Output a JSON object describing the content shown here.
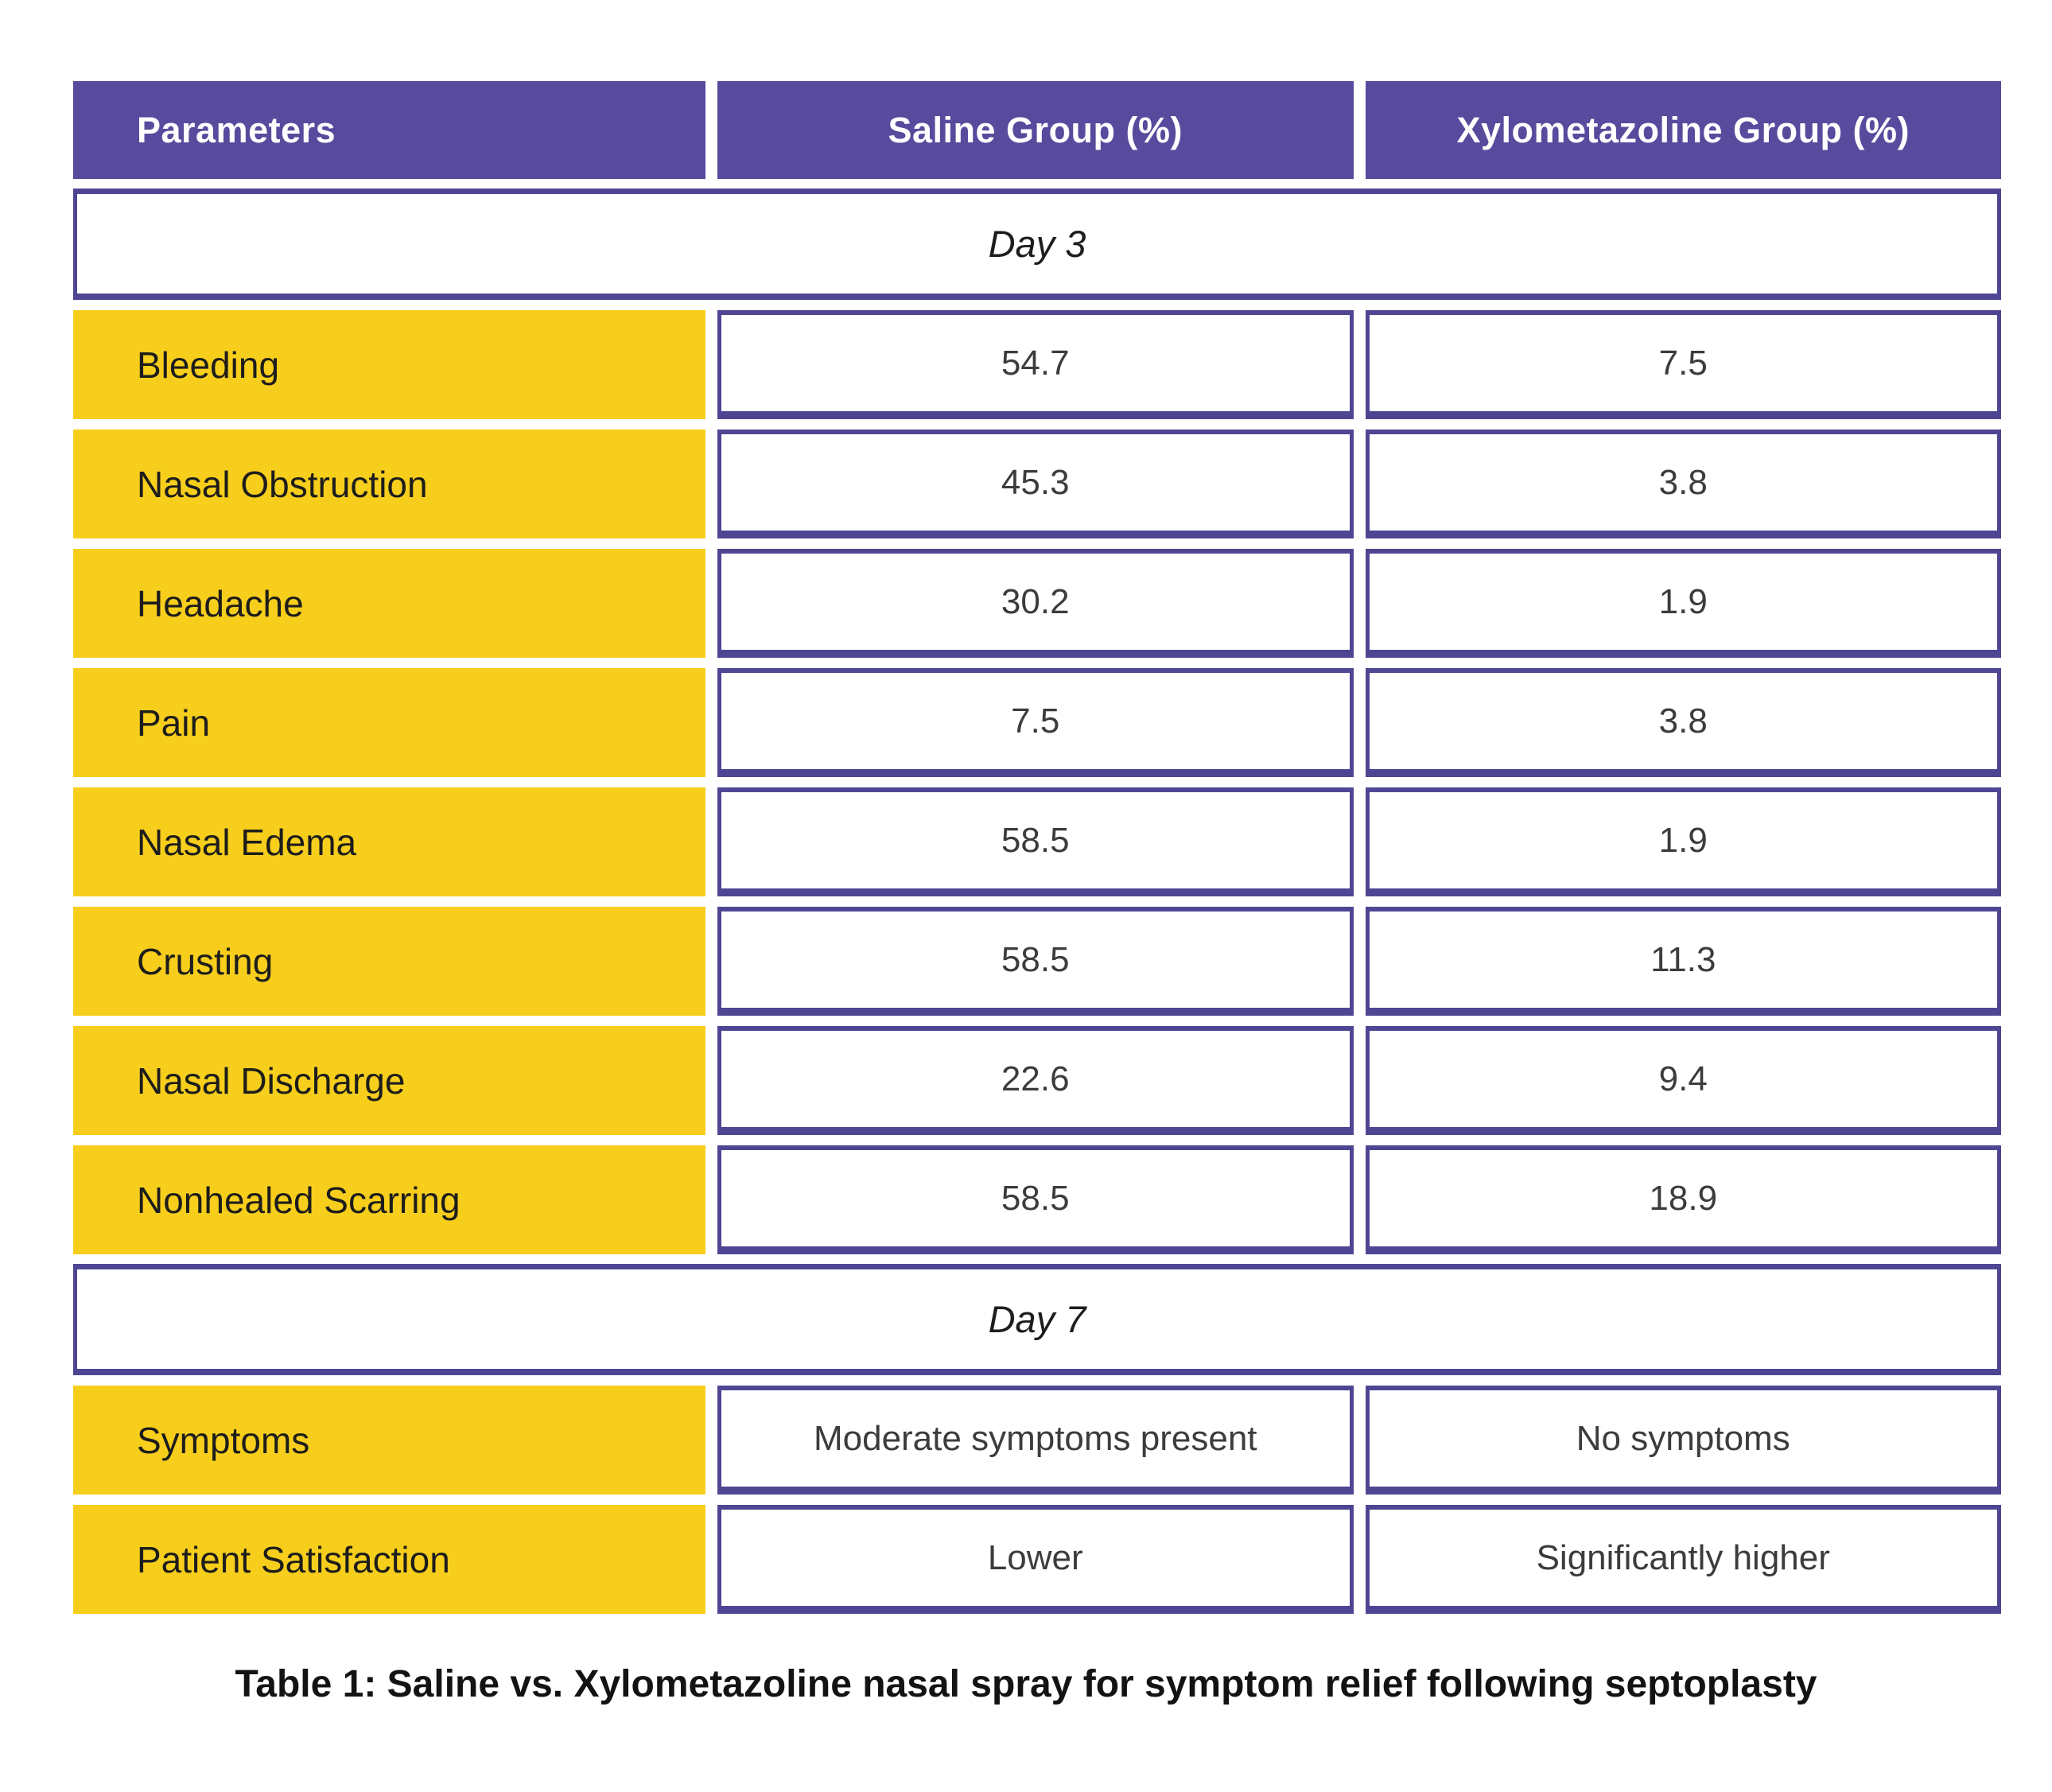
{
  "table": {
    "columns": [
      "Parameters",
      "Saline Group (%)",
      "Xylometazoline Group (%)"
    ],
    "sections": [
      {
        "title": "Day 3",
        "rows": [
          {
            "param": "Bleeding",
            "saline": "54.7",
            "xylo": "7.5"
          },
          {
            "param": "Nasal Obstruction",
            "saline": "45.3",
            "xylo": "3.8"
          },
          {
            "param": "Headache",
            "saline": "30.2",
            "xylo": "1.9"
          },
          {
            "param": "Pain",
            "saline": "7.5",
            "xylo": "3.8"
          },
          {
            "param": "Nasal Edema",
            "saline": "58.5",
            "xylo": "1.9"
          },
          {
            "param": "Crusting",
            "saline": "58.5",
            "xylo": "11.3"
          },
          {
            "param": "Nasal Discharge",
            "saline": "22.6",
            "xylo": "9.4"
          },
          {
            "param": "Nonhealed Scarring",
            "saline": "58.5",
            "xylo": "18.9"
          }
        ]
      },
      {
        "title": "Day 7",
        "rows": [
          {
            "param": "Symptoms",
            "saline": "Moderate symptoms present",
            "xylo": "No symptoms"
          },
          {
            "param": "Patient Satisfaction",
            "saline": "Lower",
            "xylo": "Significantly higher"
          }
        ]
      }
    ],
    "caption": "Table 1: Saline vs. Xylometazoline nasal spray for symptom relief following septoplasty"
  },
  "colors": {
    "header_purple": "#584A9D",
    "border_purple": "#4F4693",
    "row_yellow": "#F8CE1C"
  },
  "chart_data": {
    "type": "table",
    "title": "Table 1: Saline vs. Xylometazoline nasal spray for symptom relief following septoplasty",
    "columns": [
      "Parameters",
      "Saline Group (%)",
      "Xylometazoline Group (%)"
    ],
    "sections": [
      {
        "section": "Day 3",
        "rows": [
          [
            "Bleeding",
            54.7,
            7.5
          ],
          [
            "Nasal Obstruction",
            45.3,
            3.8
          ],
          [
            "Headache",
            30.2,
            1.9
          ],
          [
            "Pain",
            7.5,
            3.8
          ],
          [
            "Nasal Edema",
            58.5,
            1.9
          ],
          [
            "Crusting",
            58.5,
            11.3
          ],
          [
            "Nasal Discharge",
            22.6,
            9.4
          ],
          [
            "Nonhealed Scarring",
            58.5,
            18.9
          ]
        ]
      },
      {
        "section": "Day 7",
        "rows": [
          [
            "Symptoms",
            "Moderate symptoms present",
            "No symptoms"
          ],
          [
            "Patient Satisfaction",
            "Lower",
            "Significantly higher"
          ]
        ]
      }
    ]
  }
}
